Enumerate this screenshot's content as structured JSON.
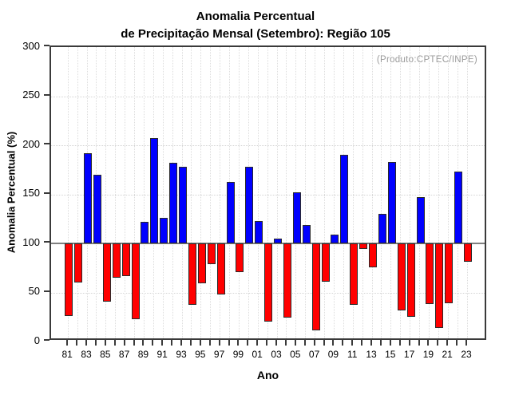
{
  "title": {
    "line1": "Anomalia Percentual",
    "line2": "de Precipitação Mensal (Setembro): Região 105"
  },
  "annotation": "(Produto:CPTEC/INPE)",
  "chart_data": {
    "type": "bar",
    "title": "Anomalia Percentual de Precipitação Mensal (Setembro): Região 105",
    "xlabel": "Ano",
    "ylabel": "Anomalia Percentual (%)",
    "ylim": [
      0,
      300
    ],
    "yticks": [
      0,
      50,
      100,
      150,
      200,
      250,
      300
    ],
    "grid_y": [
      50,
      150,
      200,
      250
    ],
    "baseline": 100,
    "label_every": 2,
    "legend": "none",
    "colors": {
      "above_baseline": "#0000FF",
      "below_baseline": "#FF0000",
      "baseline_line": "#808080",
      "annotation_gray": "#9B9B9B"
    },
    "categories": [
      "81",
      "82",
      "83",
      "84",
      "85",
      "86",
      "87",
      "88",
      "89",
      "90",
      "91",
      "92",
      "93",
      "94",
      "95",
      "96",
      "97",
      "98",
      "99",
      "00",
      "01",
      "02",
      "03",
      "04",
      "05",
      "06",
      "07",
      "08",
      "09",
      "10",
      "11",
      "12",
      "13",
      "14",
      "15",
      "16",
      "17",
      "18",
      "19",
      "20",
      "21",
      "22",
      "23"
    ],
    "values": [
      26,
      60,
      192,
      170,
      41,
      65,
      67,
      23,
      122,
      207,
      126,
      182,
      178,
      37,
      59,
      79,
      48,
      163,
      71,
      178,
      123,
      20,
      105,
      24,
      152,
      119,
      11,
      61,
      109,
      190,
      37,
      94,
      76,
      130,
      183,
      32,
      25,
      147,
      38,
      14,
      39,
      173,
      81
    ]
  }
}
